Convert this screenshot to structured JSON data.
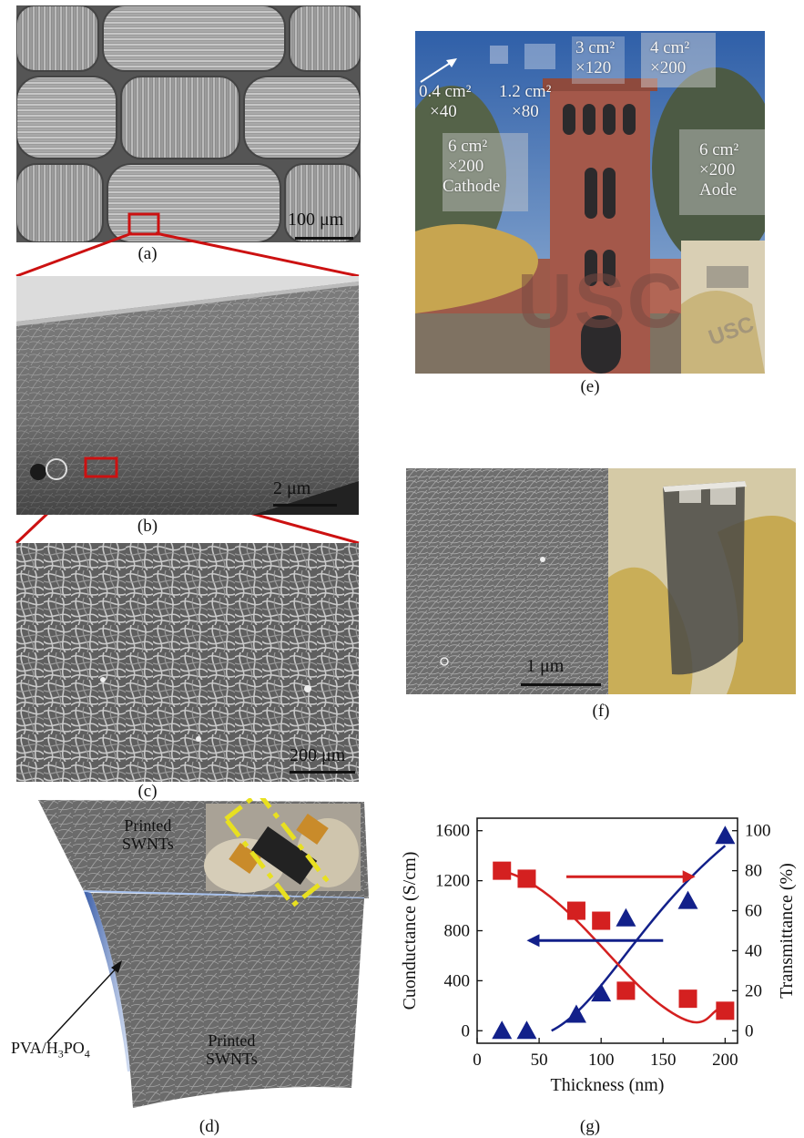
{
  "panels": {
    "a": {
      "label": "(a)",
      "scale": "100 μm"
    },
    "b": {
      "label": "(b)",
      "scale": "2 μm"
    },
    "c": {
      "label": "(c)",
      "scale": "200 μm"
    },
    "d": {
      "label": "(d)",
      "top_label_1": "Printed",
      "top_label_2": "SWNTs",
      "bottom_label_1": "Printed",
      "bottom_label_2": "SWNTs",
      "electrolyte_label": "PVA/H3PO4"
    },
    "e": {
      "label": "(e)",
      "areas": [
        {
          "area": "0.4 cm²",
          "count": "×40"
        },
        {
          "area": "1.2 cm²",
          "count": "×80"
        },
        {
          "area": "3 cm²",
          "count": "×120"
        },
        {
          "area": "4 cm²",
          "count": "×200"
        },
        {
          "area": "6 cm²",
          "count": "×200",
          "role": "Cathode"
        },
        {
          "area": "6 cm²",
          "count": "×200",
          "role": "Aode"
        }
      ],
      "logo": "USC"
    },
    "f": {
      "label": "(f)",
      "scale": "1 μm"
    },
    "g": {
      "label": "(g)"
    }
  },
  "colors": {
    "red": "#d42020",
    "blue": "#12208a",
    "scale_red": "#cc1111"
  },
  "chart_data": {
    "type": "scatter",
    "xlabel": "Thickness (nm)",
    "ylabel": "Cuonductance (S/cm)",
    "y2label": "Transmittance (%)",
    "xlim": [
      0,
      210
    ],
    "ylim": [
      -100,
      1700
    ],
    "y2lim": [
      -6.25,
      106.25
    ],
    "xticks": [
      0,
      50,
      100,
      150,
      200
    ],
    "yticks": [
      0,
      400,
      800,
      1200,
      1600
    ],
    "y2ticks": [
      0,
      20,
      40,
      60,
      80,
      100
    ],
    "series": [
      {
        "axis": "right",
        "marker": "square",
        "color": "#d42020",
        "x": [
          20,
          40,
          80,
          100,
          120,
          170,
          200
        ],
        "y": [
          80,
          76,
          60,
          55,
          20,
          16,
          10
        ]
      },
      {
        "axis": "left",
        "marker": "triangle",
        "color": "#12208a",
        "x": [
          20,
          40,
          80,
          100,
          120,
          170,
          200
        ],
        "y": [
          0,
          0,
          130,
          300,
          900,
          1040,
          1560
        ]
      }
    ]
  }
}
